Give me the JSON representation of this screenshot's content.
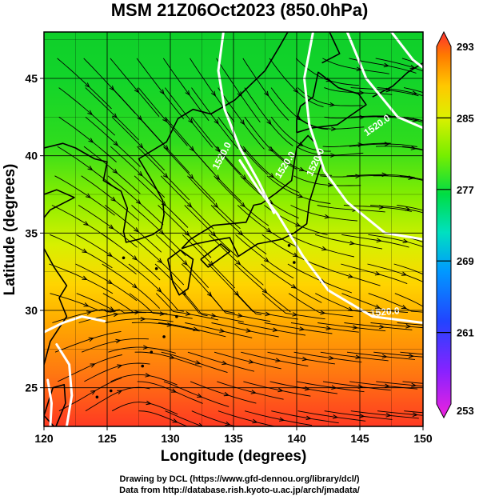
{
  "chart_data": {
    "type": "heatmap",
    "title": "MSM 21Z06Oct2023 (850.0hPa)",
    "xlabel": "Longitude (degrees)",
    "ylabel": "Latitude  (degrees)",
    "xlim": [
      120,
      150
    ],
    "ylim": [
      22.5,
      48
    ],
    "x_ticks": [
      "120",
      "125",
      "130",
      "135",
      "140",
      "145",
      "150"
    ],
    "y_ticks": [
      "25",
      "30",
      "35",
      "40",
      "45"
    ],
    "grid": true,
    "colorbar": {
      "min": 253,
      "max": 293,
      "ticks": [
        "293",
        "285",
        "277",
        "269",
        "261",
        "253"
      ],
      "colors": [
        "#ff3a3a",
        "#ff8800",
        "#ffd200",
        "#b9ff00",
        "#22dd11",
        "#00e0a0",
        "#00a0ff",
        "#2244ff",
        "#6a22ff",
        "#dd22dd"
      ]
    },
    "contour_labels": [
      "1520.0",
      "1520.0",
      "1520.0",
      "1520.0",
      "1520.0"
    ],
    "colors": {
      "contour": "#ffffff",
      "streamline": "#000000",
      "coastline": "#000000",
      "grid": "#000000"
    }
  },
  "credits": {
    "line1": "Drawing by DCL (https://www.gfd-dennou.org/library/dcl/)",
    "line2": "Data from http://database.rish.kyoto-u.ac.jp/arch/jmadata/"
  }
}
